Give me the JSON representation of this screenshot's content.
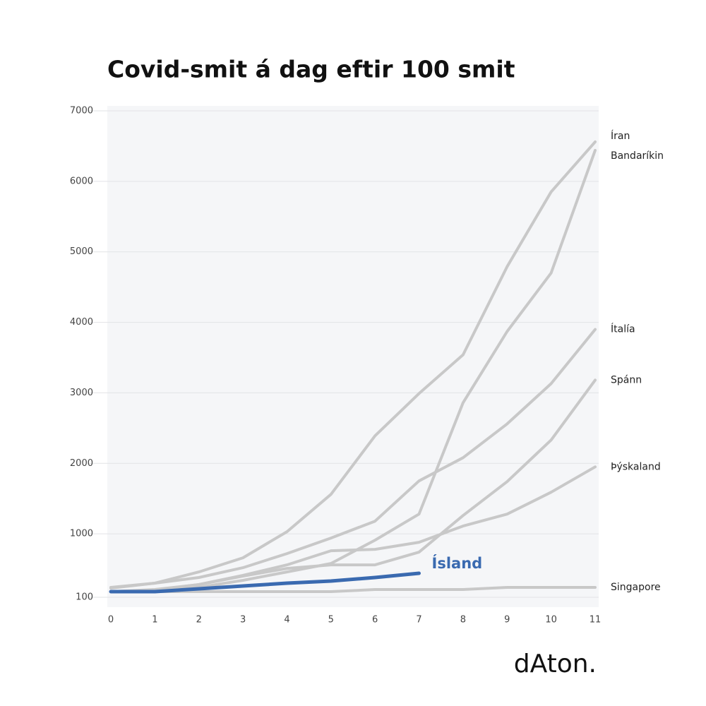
{
  "chart_data": {
    "type": "line",
    "title": "Covid-smit á dag eftir 100 smit",
    "brand": "dAton.",
    "x": [
      0,
      1,
      2,
      3,
      4,
      5,
      6,
      7,
      8,
      9,
      10,
      11
    ],
    "xlim": [
      0,
      11
    ],
    "xticks": [
      0,
      1,
      2,
      3,
      4,
      5,
      6,
      7,
      8,
      9,
      10,
      11
    ],
    "ylim": [
      100,
      7000
    ],
    "yticks": [
      100,
      1000,
      2000,
      3000,
      4000,
      5000,
      6000,
      7000
    ],
    "grid": true,
    "series": [
      {
        "name": "Íran",
        "color": "#c8c8c8",
        "label_color": "#222222",
        "values": [
          230,
          300,
          460,
          660,
          1030,
          1560,
          2390,
          2990,
          3540,
          4790,
          5850,
          6560
        ]
      },
      {
        "name": "Bandaríkin",
        "color": "#c8c8c8",
        "label_color": "#222222",
        "values": [
          180,
          200,
          240,
          340,
          460,
          580,
          910,
          1280,
          2860,
          3870,
          4700,
          6440
        ]
      },
      {
        "name": "Ítalía",
        "color": "#c8c8c8",
        "label_color": "#222222",
        "values": [
          240,
          300,
          380,
          520,
          720,
          940,
          1180,
          1750,
          2080,
          2560,
          3130,
          3900
        ]
      },
      {
        "name": "Spánn",
        "color": "#c8c8c8",
        "label_color": "#222222",
        "values": [
          180,
          200,
          280,
          400,
          510,
          560,
          560,
          740,
          1260,
          1740,
          2330,
          3180
        ]
      },
      {
        "name": "Þýskaland",
        "color": "#c8c8c8",
        "label_color": "#222222",
        "values": [
          180,
          210,
          280,
          410,
          560,
          760,
          780,
          880,
          1110,
          1280,
          1590,
          1950
        ]
      },
      {
        "name": "Singapore",
        "color": "#c8c8c8",
        "label_color": "#222222",
        "values": [
          180,
          180,
          180,
          180,
          180,
          180,
          210,
          210,
          210,
          240,
          240,
          240
        ]
      },
      {
        "name": "Ísland",
        "color": "#3a6ab0",
        "label_color": "#3a6ab0",
        "values": [
          180,
          180,
          220,
          260,
          300,
          330,
          380,
          440,
          null,
          null,
          null,
          null
        ]
      }
    ]
  }
}
